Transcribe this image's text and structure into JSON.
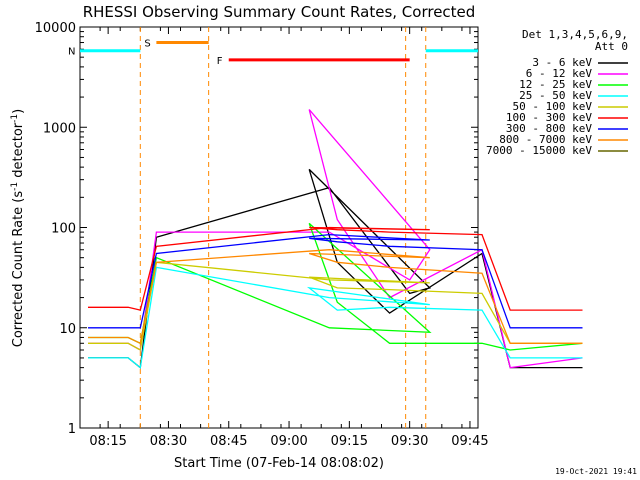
{
  "chart_data": {
    "type": "line",
    "title": "RHESSI Observing Summary Count Rates, Corrected",
    "xlabel": "Start Time (07-Feb-14 08:08:02)",
    "ylabel": "Corrected Count Rate (s",
    "ylabel_sup1": "-1",
    "ylabel_mid": " detector",
    "ylabel_sup2": "-1",
    "ylabel_end": ")",
    "yscale": "log",
    "ylim": [
      1,
      10000
    ],
    "xlim": [
      "08:08",
      "09:47"
    ],
    "x_ticks": [
      "08:15",
      "08:30",
      "08:45",
      "09:00",
      "09:15",
      "09:30",
      "09:45"
    ],
    "y_ticks": [
      "1",
      "10",
      "100",
      "1000",
      "10000"
    ],
    "legend": {
      "position": "right",
      "header1": "Det 1,3,4,5,6,9,",
      "header2": "Att 0"
    },
    "gaps": [
      [
        "08:23",
        "08:40"
      ],
      [
        "09:29",
        "09:34"
      ]
    ],
    "series": [
      {
        "name": "3 - 6 keV",
        "color": "#000000",
        "values": [
          [
            8.1,
            5
          ],
          [
            8.2,
            5
          ],
          [
            8.23,
            4
          ],
          [
            8.27,
            80
          ],
          [
            8.7,
            250
          ],
          [
            8.9,
            22
          ],
          [
            8.95,
            25
          ],
          [
            9.05,
            380
          ],
          [
            9.12,
            45
          ],
          [
            9.25,
            14
          ],
          [
            9.48,
            55
          ],
          [
            9.55,
            4
          ],
          [
            9.73,
            4
          ]
        ]
      },
      {
        "name": "6 - 12 keV",
        "color": "#ff00ff",
        "values": [
          [
            8.1,
            7
          ],
          [
            8.2,
            7
          ],
          [
            8.23,
            6
          ],
          [
            8.27,
            90
          ],
          [
            8.7,
            90
          ],
          [
            8.9,
            30
          ],
          [
            8.95,
            60
          ],
          [
            9.05,
            1500
          ],
          [
            9.12,
            120
          ],
          [
            9.25,
            20
          ],
          [
            9.48,
            60
          ],
          [
            9.55,
            4
          ],
          [
            9.73,
            5
          ]
        ]
      },
      {
        "name": "12 - 25 keV",
        "color": "#00ff00",
        "values": [
          [
            8.1,
            8
          ],
          [
            8.2,
            8
          ],
          [
            8.23,
            7
          ],
          [
            8.27,
            50
          ],
          [
            8.7,
            10
          ],
          [
            8.95,
            9
          ],
          [
            9.05,
            110
          ],
          [
            9.12,
            18
          ],
          [
            9.25,
            7
          ],
          [
            9.48,
            7
          ],
          [
            9.55,
            6
          ],
          [
            9.73,
            7
          ]
        ]
      },
      {
        "name": "25 - 50 keV",
        "color": "#00ffff",
        "values": [
          [
            8.1,
            5
          ],
          [
            8.2,
            5
          ],
          [
            8.23,
            4
          ],
          [
            8.27,
            40
          ],
          [
            8.7,
            20
          ],
          [
            8.95,
            17
          ],
          [
            9.05,
            25
          ],
          [
            9.12,
            15
          ],
          [
            9.25,
            16
          ],
          [
            9.48,
            15
          ],
          [
            9.55,
            5
          ],
          [
            9.73,
            5
          ]
        ]
      },
      {
        "name": "50 - 100 keV",
        "color": "#cccc00",
        "values": [
          [
            8.1,
            7
          ],
          [
            8.2,
            7
          ],
          [
            8.23,
            6
          ],
          [
            8.27,
            45
          ],
          [
            8.7,
            30
          ],
          [
            8.95,
            28
          ],
          [
            9.05,
            32
          ],
          [
            9.12,
            25
          ],
          [
            9.25,
            24
          ],
          [
            9.48,
            22
          ],
          [
            9.55,
            7
          ],
          [
            9.73,
            7
          ]
        ]
      },
      {
        "name": "100 - 300 keV",
        "color": "#ff0000",
        "values": [
          [
            8.1,
            16
          ],
          [
            8.2,
            16
          ],
          [
            8.23,
            15
          ],
          [
            8.27,
            65
          ],
          [
            8.7,
            100
          ],
          [
            8.95,
            95
          ],
          [
            9.05,
            100
          ],
          [
            9.12,
            95
          ],
          [
            9.25,
            90
          ],
          [
            9.48,
            85
          ],
          [
            9.55,
            15
          ],
          [
            9.73,
            15
          ]
        ]
      },
      {
        "name": "300 - 800 keV",
        "color": "#0000ff",
        "values": [
          [
            8.1,
            10
          ],
          [
            8.2,
            10
          ],
          [
            8.23,
            10
          ],
          [
            8.27,
            55
          ],
          [
            8.7,
            85
          ],
          [
            8.95,
            75
          ],
          [
            9.05,
            78
          ],
          [
            9.12,
            72
          ],
          [
            9.25,
            65
          ],
          [
            9.48,
            60
          ],
          [
            9.55,
            10
          ],
          [
            9.73,
            10
          ]
        ]
      },
      {
        "name": "800 - 7000 keV",
        "color": "#ff8800",
        "values": [
          [
            8.1,
            8
          ],
          [
            8.2,
            8
          ],
          [
            8.23,
            7
          ],
          [
            8.27,
            45
          ],
          [
            8.7,
            60
          ],
          [
            8.95,
            50
          ],
          [
            9.05,
            55
          ],
          [
            9.12,
            45
          ],
          [
            9.25,
            40
          ],
          [
            9.48,
            35
          ],
          [
            9.55,
            7
          ],
          [
            9.73,
            7
          ]
        ]
      },
      {
        "name": "7000 - 15000 keV",
        "color": "#666600",
        "values": []
      }
    ],
    "flags": [
      {
        "label": "S",
        "color": "#ff8800",
        "start": 8.27,
        "end": 8.4,
        "level": 7000
      },
      {
        "label": "N",
        "color": "#00ffff",
        "start": 8.08,
        "end": 8.23,
        "level": 5800
      },
      {
        "label": "",
        "color": "#00ffff",
        "start": 9.34,
        "end": 9.47,
        "level": 5800
      },
      {
        "label": "F",
        "color": "#ff0000",
        "start": 8.45,
        "end": 9.3,
        "level": 4700
      }
    ]
  },
  "timestamp": "19-Oct-2021 19:41"
}
